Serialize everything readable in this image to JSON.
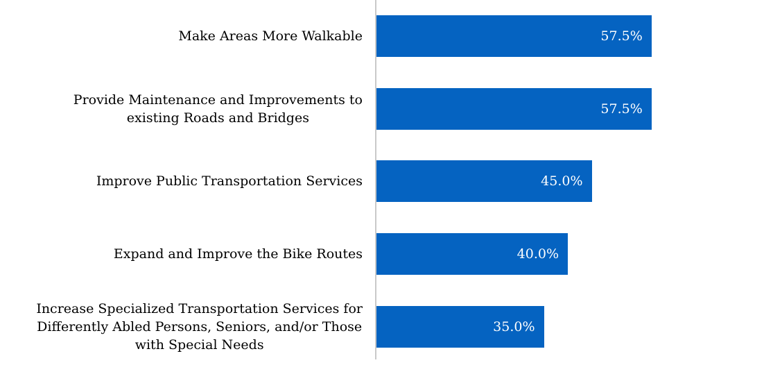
{
  "chart_data": {
    "type": "bar",
    "orientation": "horizontal",
    "title": "",
    "xlabel": "",
    "ylabel": "",
    "grid": false,
    "legend": false,
    "xlim": [
      0,
      81
    ],
    "categories": [
      "Make Areas More Walkable",
      "Provide Maintenance and Improvements to\nexisting Roads and Bridges",
      "Improve Public Transportation Services",
      "Expand and Improve the Bike Routes",
      "Increase Specialized Transportation Services for\nDifferently Abled Persons, Seniors, and/or Those\nwith Special Needs"
    ],
    "values": [
      57.5,
      57.5,
      45.0,
      40.0,
      35.0
    ],
    "value_labels": [
      "57.5%",
      "57.5%",
      "45.0%",
      "40.0%",
      "35.0%"
    ],
    "colors": {
      "bar": "#0563C1",
      "value_label": "#FFFFFF",
      "category_label": "#000000",
      "axis_line": "#C9C9C9",
      "background": "#FFFFFF"
    }
  }
}
